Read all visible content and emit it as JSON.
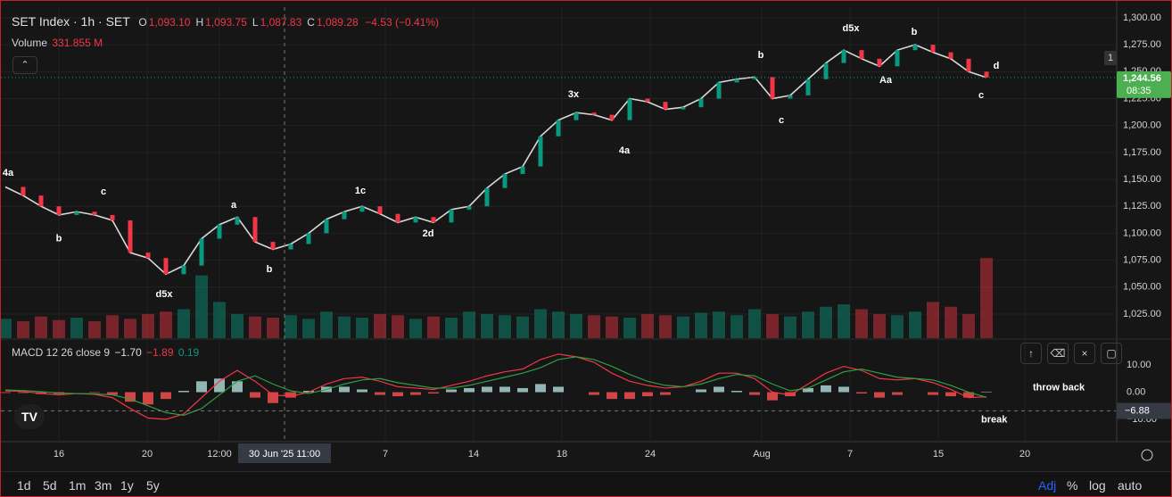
{
  "chart_data": {
    "type": "line",
    "title": "SET Index · 1h · SET",
    "ohlc": [
      {
        "key": "O",
        "text": "1,093.10"
      },
      {
        "key": "H",
        "text": "1,093.75"
      },
      {
        "key": "L",
        "text": "1,087.83"
      },
      {
        "key": "C",
        "text": "1,089.28"
      }
    ],
    "change": "−4.53 (−0.41%)",
    "x": [
      0,
      1,
      2,
      3,
      4,
      5,
      6,
      7,
      8,
      9,
      10,
      11,
      12,
      13,
      14,
      15,
      16,
      17,
      18,
      19,
      20,
      21,
      22,
      23,
      24,
      25,
      26,
      27,
      28,
      29,
      30,
      31,
      32,
      33,
      34,
      35,
      36,
      37,
      38,
      39,
      40,
      41,
      42,
      43,
      44,
      45,
      46,
      47,
      48,
      49,
      50,
      51,
      52,
      53,
      54,
      55
    ],
    "values": [
      1143,
      1135,
      1125,
      1117,
      1120,
      1117,
      1112,
      1082,
      1077,
      1062,
      1070,
      1095,
      1108,
      1115,
      1092,
      1085,
      1090,
      1100,
      1113,
      1120,
      1125,
      1118,
      1110,
      1115,
      1110,
      1122,
      1125,
      1142,
      1155,
      1162,
      1190,
      1205,
      1212,
      1210,
      1205,
      1225,
      1222,
      1215,
      1217,
      1225,
      1240,
      1243,
      1245,
      1225,
      1228,
      1243,
      1258,
      1270,
      1262,
      1255,
      1270,
      1275,
      1268,
      1262,
      1250,
      1244.56
    ],
    "color": "#d9d9d9",
    "xlim": [
      -0.25,
      62.25
    ],
    "xticks": [
      {
        "value": 3,
        "label": "16"
      },
      {
        "value": 7.95,
        "label": "20"
      },
      {
        "value": 12,
        "label": "12:00"
      },
      {
        "value": 21.3,
        "label": "7"
      },
      {
        "value": 26.25,
        "label": "14"
      },
      {
        "value": 31.2,
        "label": "18"
      },
      {
        "value": 36.15,
        "label": "24"
      },
      {
        "value": 42.4,
        "label": "Aug"
      },
      {
        "value": 47.35,
        "label": "7"
      },
      {
        "value": 52.3,
        "label": "15"
      },
      {
        "value": 57.15,
        "label": "20"
      }
    ],
    "crosshair": {
      "x": 15.65,
      "label": "30 Jun '25   11:00"
    },
    "ylim": [
      1002.6,
      1309.9
    ],
    "yticks": [
      {
        "value": 1025,
        "label": "1,025.00"
      },
      {
        "value": 1050,
        "label": "1,050.00"
      },
      {
        "value": 1075,
        "label": "1,075.00"
      },
      {
        "value": 1100,
        "label": "1,100.00"
      },
      {
        "value": 1125,
        "label": "1,125.00"
      },
      {
        "value": 1150,
        "label": "1,150.00"
      },
      {
        "value": 1175,
        "label": "1,175.00"
      },
      {
        "value": 1200,
        "label": "1,200.00"
      },
      {
        "value": 1225,
        "label": "1,225.00"
      },
      {
        "value": 1250,
        "label": "1,250.00"
      },
      {
        "value": 1275,
        "label": "1,275.00"
      },
      {
        "value": 1300,
        "label": "1,300.00"
      }
    ],
    "last_price": {
      "value": 1244.56,
      "label": "1,244.56",
      "time": "08:35"
    },
    "badge": "1",
    "grid": true,
    "up_color": "#089981",
    "down_color": "#f23645",
    "annotations": [
      {
        "text": "4a",
        "x": 0.15,
        "y": 1155.8
      },
      {
        "text": "b",
        "x": 3,
        "y": 1095
      },
      {
        "text": "c",
        "x": 5.5,
        "y": 1138.4
      },
      {
        "text": "d5x",
        "x": 8.9,
        "y": 1043
      },
      {
        "text": "a",
        "x": 12.8,
        "y": 1126
      },
      {
        "text": "b",
        "x": 14.8,
        "y": 1066.4
      },
      {
        "text": "1c",
        "x": 19.9,
        "y": 1139
      },
      {
        "text": "2d",
        "x": 23.7,
        "y": 1099.5
      },
      {
        "text": "3x",
        "x": 31.85,
        "y": 1228.7
      },
      {
        "text": "4a",
        "x": 34.7,
        "y": 1176.6
      },
      {
        "text": "b",
        "x": 42.35,
        "y": 1265.2
      },
      {
        "text": "c",
        "x": 43.5,
        "y": 1204.7
      },
      {
        "text": "d5x",
        "x": 47.4,
        "y": 1290
      },
      {
        "text": "Aa",
        "x": 49.35,
        "y": 1242
      },
      {
        "text": "b",
        "x": 50.95,
        "y": 1286.7
      },
      {
        "text": "c",
        "x": 54.7,
        "y": 1228
      },
      {
        "text": "d",
        "x": 55.55,
        "y": 1255.3
      }
    ],
    "volume": {
      "name": "Volume",
      "value_label": "331.855 M",
      "ylim": [
        0,
        1370
      ],
      "values": [
        80,
        70,
        90,
        75,
        85,
        70,
        95,
        80,
        100,
        110,
        120,
        260,
        150,
        100,
        90,
        85,
        95,
        80,
        110,
        90,
        85,
        100,
        95,
        80,
        90,
        85,
        110,
        100,
        95,
        90,
        120,
        110,
        100,
        95,
        90,
        85,
        100,
        95,
        90,
        105,
        110,
        95,
        120,
        100,
        90,
        110,
        130,
        140,
        120,
        100,
        95,
        110,
        150,
        130,
        100,
        331.855
      ]
    },
    "macd": {
      "name": "MACD 12 26 close 9",
      "macd_label": "−1.70",
      "signal_label": "−1.89",
      "hist_label": "0.19",
      "ylim": [
        -18.2,
        19.2
      ],
      "yticks": [
        {
          "value": 10,
          "label": "10.00"
        },
        {
          "value": 0,
          "label": "0.00"
        },
        {
          "value": -10,
          "label": "−10.00"
        }
      ],
      "hline": {
        "value": -6.88,
        "label": "−6.88"
      },
      "macd_color": "#f23645",
      "signal_color": "#2e9e44",
      "macd_values": [
        0.5,
        0.3,
        -0.5,
        -1,
        -0.5,
        -0.8,
        -2,
        -6,
        -9.5,
        -10,
        -8,
        -2,
        4,
        8,
        4,
        -1,
        -1.5,
        0,
        3,
        5,
        5.5,
        4,
        2,
        1.5,
        1,
        2.5,
        4,
        6,
        7.5,
        8.5,
        12,
        14,
        13,
        11,
        7,
        4,
        2.5,
        1.5,
        2,
        4,
        7,
        7,
        5,
        0,
        -1,
        3,
        7,
        9.5,
        8,
        5,
        4.5,
        5,
        3.5,
        1,
        -2,
        -1.7
      ],
      "signal_values": [
        0.8,
        0.6,
        0.2,
        -0.3,
        -0.5,
        -0.6,
        -1,
        -2.5,
        -5,
        -7.5,
        -8.5,
        -6,
        -1,
        4,
        6,
        3,
        0.5,
        -0.5,
        1,
        3,
        4.5,
        5,
        3.5,
        2.5,
        1.5,
        1.5,
        2.5,
        4,
        5.5,
        7,
        9,
        12,
        13,
        12,
        9.5,
        6.5,
        4,
        2.5,
        2,
        3,
        5,
        6.5,
        6,
        3,
        0.5,
        1.5,
        4.5,
        7.5,
        8.5,
        7,
        5.5,
        5,
        4.5,
        2.5,
        0,
        -1.89
      ],
      "hist_values": [
        -0.3,
        -0.3,
        -0.7,
        -0.7,
        0,
        -0.2,
        -1,
        -3.5,
        -4.5,
        -2.5,
        0.5,
        4,
        5,
        4,
        -2,
        -4,
        -2,
        0.5,
        2,
        2,
        1,
        -1,
        -1.5,
        -1,
        -0.5,
        1,
        1.5,
        2,
        2,
        1.5,
        3,
        2,
        0,
        -1,
        -2.5,
        -2.5,
        -1.5,
        -1,
        0,
        1,
        2,
        0.5,
        -1,
        -3,
        -1.5,
        1.5,
        2.5,
        2,
        -0.5,
        -2,
        -1,
        0,
        -1,
        -1.5,
        -2,
        0.19
      ],
      "annotations": [
        {
          "text": "throw back",
          "x": 57.6,
          "y": 1.6
        },
        {
          "text": "break",
          "x": 54.7,
          "y": -10.2
        }
      ]
    }
  },
  "toolbar": {
    "ranges": [
      "1d",
      "5d",
      "1m",
      "3m",
      "1y",
      "5y"
    ],
    "options": [
      "Adj",
      "%",
      "log",
      "auto"
    ]
  }
}
